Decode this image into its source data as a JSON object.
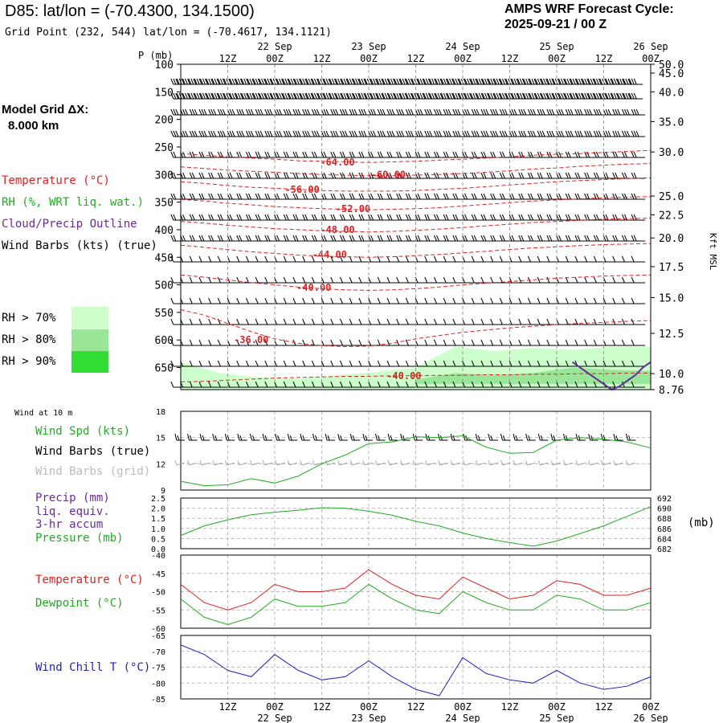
{
  "header": {
    "station_title": "D85:  lat/lon = (-70.4300, 134.1500)",
    "grid_point": "Grid Point (232, 544) lat/lon = (-70.4617, 134.1121)",
    "forecast_label": "AMPS WRF Forecast Cycle:",
    "forecast_cycle": "2025-09-21 / 00  Z",
    "model_grid_label": "Model Grid ΔX:",
    "model_grid_value": "8.000 km"
  },
  "legend": {
    "temperature": "Temperature (°C)",
    "rh": "RH (%, WRT liq. wat.)",
    "cloud": "Cloud/Precip Outline",
    "wind_barbs": "Wind Barbs (kts) (true)",
    "rh_levels": [
      {
        "label": "RH > 70%",
        "color": "#ccffcc"
      },
      {
        "label": "RH > 80%",
        "color": "#99e699"
      },
      {
        "label": "RH > 90%",
        "color": "#33dd33"
      }
    ]
  },
  "colors": {
    "temperature": "#e02020",
    "rh": "#22aa22",
    "cloud": "#6a2a9a",
    "pressure": "#22aa22",
    "wind_chill": "#2222bb",
    "grid_barbs": "#aaaaaa"
  },
  "time_axis": {
    "tick_labels": [
      "12Z",
      "00Z",
      "12Z",
      "00Z",
      "12Z",
      "00Z",
      "12Z",
      "00Z",
      "12Z",
      "00Z"
    ],
    "tick_hours": [
      12,
      24,
      36,
      48,
      60,
      72,
      84,
      96,
      108,
      120
    ],
    "date_labels": [
      "22 Sep",
      "23 Sep",
      "24 Sep",
      "25 Sep",
      "26 Sep"
    ],
    "date_hours": [
      24,
      48,
      72,
      96,
      120
    ],
    "range_hours": [
      0,
      120
    ]
  },
  "chart_data": [
    {
      "type": "line",
      "subtype": "time-height cross section",
      "ylabel": "P (mb)",
      "ylabel_right": "Kft MSL",
      "y_ticks": [
        100,
        150,
        200,
        250,
        300,
        350,
        400,
        450,
        500,
        550,
        600,
        650
      ],
      "right_ticks": [
        {
          "label": "50.0",
          "p": 100
        },
        {
          "label": "45.0",
          "p": 116
        },
        {
          "label": "40.0",
          "p": 150
        },
        {
          "label": "35.0",
          "p": 204
        },
        {
          "label": "30.0",
          "p": 259
        },
        {
          "label": "25.0",
          "p": 339
        },
        {
          "label": "22.5",
          "p": 373
        },
        {
          "label": "20.0",
          "p": 415
        },
        {
          "label": "17.5",
          "p": 467
        },
        {
          "label": "15.0",
          "p": 523
        },
        {
          "label": "12.5",
          "p": 588
        },
        {
          "label": "10.0",
          "p": 661
        },
        {
          "label": "8.76",
          "p": 690
        }
      ],
      "ylim": [
        100,
        690
      ],
      "temperature_contours": [
        {
          "label": "-64.00",
          "p": 278,
          "label_hour": 40,
          "values": [
            262,
            265,
            268,
            270,
            272,
            275,
            276,
            277,
            278,
            277,
            276,
            274,
            272,
            270,
            268,
            265,
            263,
            262,
            260,
            258,
            256
          ]
        },
        {
          "label": "-60.00",
          "p": 300,
          "label_hour": 53,
          "values": [
            286,
            289,
            292,
            294,
            296,
            298,
            300,
            301,
            302,
            302,
            301,
            300,
            298,
            296,
            293,
            290,
            288,
            285,
            283,
            281,
            280
          ]
        },
        {
          "label": "-56.00",
          "p": 327,
          "label_hour": 31,
          "values": [
            313,
            316,
            320,
            323,
            325,
            327,
            329,
            330,
            330,
            330,
            329,
            327,
            325,
            322,
            319,
            316,
            313,
            311,
            309,
            307,
            306
          ]
        },
        {
          "label": "-52.00",
          "p": 362,
          "label_hour": 44,
          "values": [
            345,
            348,
            352,
            355,
            358,
            360,
            362,
            363,
            364,
            363,
            362,
            360,
            357,
            354,
            351,
            348,
            346,
            344,
            342,
            341,
            340
          ]
        },
        {
          "label": "-48.00",
          "p": 400,
          "label_hour": 40,
          "values": [
            385,
            388,
            392,
            395,
            398,
            400,
            402,
            403,
            404,
            403,
            401,
            399,
            396,
            393,
            390,
            387,
            385,
            383,
            381,
            380,
            379
          ]
        },
        {
          "label": "-44.00",
          "p": 445,
          "label_hour": 38,
          "values": [
            428,
            432,
            436,
            440,
            443,
            446,
            448,
            449,
            450,
            449,
            447,
            445,
            442,
            439,
            436,
            433,
            431,
            429,
            427,
            426,
            425
          ]
        },
        {
          "label": "-40.00",
          "p": 505,
          "label_hour": 34,
          "values": [
            482,
            486,
            491,
            496,
            500,
            504,
            507,
            509,
            510,
            509,
            507,
            504,
            500,
            497,
            494,
            491,
            488,
            486,
            484,
            483,
            482
          ]
        },
        {
          "label": "-36.00",
          "p": 600,
          "label_hour": 18,
          "values": [
            545,
            555,
            570,
            585,
            598,
            606,
            610,
            612,
            611,
            606,
            598,
            592,
            586,
            582,
            578,
            575,
            572,
            570,
            568,
            566,
            565
          ]
        },
        {
          "label": "-40.00",
          "p": 665,
          "label_hour": 57,
          "values": [
            676,
            675,
            673,
            671,
            669,
            668,
            667,
            666,
            666,
            665,
            665,
            664,
            664,
            663,
            663,
            662,
            662,
            661,
            661,
            660,
            660
          ]
        }
      ],
      "rh_regions": [
        {
          "level": "RH > 70%",
          "hours": [
            0,
            10,
            20,
            30,
            40,
            50,
            60,
            70,
            80,
            90,
            100,
            110,
            120
          ],
          "top_p": [
            640,
            660,
            668,
            670,
            664,
            658,
            650,
            612,
            620,
            614,
            618,
            612,
            612
          ],
          "bottom_p": 690
        },
        {
          "level": "RH > 80%",
          "hours": [
            60,
            70,
            80,
            90,
            100,
            110,
            120
          ],
          "top_p": [
            672,
            660,
            664,
            660,
            650,
            654,
            656
          ],
          "bottom_p": 680
        }
      ],
      "cloud_outline": {
        "hours": [
          100,
          104,
          108,
          110,
          112,
          116,
          118,
          120
        ],
        "p": [
          640,
          660,
          680,
          690,
          684,
          664,
          650,
          640
        ]
      }
    },
    {
      "type": "line",
      "title": "Wind at 10 m",
      "ylabel": "Wind Spd (kts)",
      "ylim": [
        9,
        18
      ],
      "y_ticks": [
        9,
        12,
        15,
        18
      ],
      "x_hours": [
        0,
        6,
        12,
        18,
        24,
        30,
        36,
        42,
        48,
        54,
        60,
        66,
        72,
        78,
        84,
        90,
        96,
        102,
        108,
        114,
        120
      ],
      "series": [
        {
          "name": "Wind Spd (kts)",
          "values": [
            10.0,
            9.5,
            9.6,
            10.3,
            9.8,
            10.6,
            12.0,
            13.0,
            14.3,
            14.5,
            15.1,
            15.0,
            15.2,
            13.9,
            13.2,
            13.3,
            14.7,
            15.0,
            14.8,
            14.5,
            13.8
          ]
        }
      ],
      "barb_labels": [
        "Wind Barbs (true)",
        "Wind Barbs (grid)"
      ]
    },
    {
      "type": "line",
      "ylabel": "Precip (mm)",
      "ylabel_lines": [
        "Precip (mm)",
        "liq. equiv.",
        "3-hr accum"
      ],
      "ylabel2": "Pressure (mb)",
      "ylim": [
        0,
        2.5
      ],
      "y_ticks": [
        0.0,
        0.5,
        1.0,
        1.5,
        2.0,
        2.5
      ],
      "y2lim": [
        682,
        692
      ],
      "y2_ticks": [
        682,
        684,
        686,
        688,
        690,
        692
      ],
      "y2_unit": "(mb)",
      "x_hours": [
        0,
        6,
        12,
        18,
        24,
        30,
        36,
        42,
        48,
        54,
        60,
        66,
        72,
        78,
        84,
        90,
        96,
        102,
        108,
        114,
        120
      ],
      "series": [
        {
          "name": "Pressure (mb)",
          "axis": "right",
          "values": [
            684.6,
            686.5,
            687.7,
            688.7,
            689.2,
            689.6,
            690.1,
            690.0,
            689.4,
            688.6,
            687.4,
            686.5,
            685.1,
            684.0,
            683.2,
            682.5,
            683.5,
            685.0,
            686.5,
            688.4,
            690.3
          ]
        }
      ]
    },
    {
      "type": "line",
      "ylim": [
        -60,
        -40
      ],
      "y_ticks": [
        -60,
        -55,
        -50,
        -45,
        -40
      ],
      "x_hours": [
        0,
        6,
        12,
        18,
        24,
        30,
        36,
        42,
        48,
        54,
        60,
        66,
        72,
        78,
        84,
        90,
        96,
        102,
        108,
        114,
        120
      ],
      "series": [
        {
          "name": "Temperature (°C)",
          "values": [
            -48,
            -53,
            -55,
            -53,
            -48,
            -50,
            -50,
            -49,
            -44,
            -48,
            -51,
            -52,
            -46,
            -49,
            -52,
            -51,
            -47,
            -48,
            -51,
            -51,
            -49
          ]
        },
        {
          "name": "Dewpoint (°C)",
          "values": [
            -52,
            -57,
            -59,
            -57,
            -52,
            -54,
            -54,
            -53,
            -48,
            -52,
            -55,
            -56,
            -50,
            -53,
            -55,
            -55,
            -51,
            -52,
            -55,
            -55,
            -53
          ]
        }
      ]
    },
    {
      "type": "line",
      "ylim": [
        -85,
        -65
      ],
      "y_ticks": [
        -85,
        -80,
        -75,
        -70,
        -65
      ],
      "x_hours": [
        0,
        6,
        12,
        18,
        24,
        30,
        36,
        42,
        48,
        54,
        60,
        66,
        72,
        78,
        84,
        90,
        96,
        102,
        108,
        114,
        120
      ],
      "series": [
        {
          "name": "Wind Chill T (°C)",
          "values": [
            -68,
            -71,
            -76,
            -78,
            -71,
            -76,
            -79,
            -78,
            -73,
            -78,
            -82,
            -84,
            -72,
            -77,
            -79,
            -80,
            -76,
            -80,
            -82,
            -81,
            -78
          ]
        }
      ]
    }
  ]
}
